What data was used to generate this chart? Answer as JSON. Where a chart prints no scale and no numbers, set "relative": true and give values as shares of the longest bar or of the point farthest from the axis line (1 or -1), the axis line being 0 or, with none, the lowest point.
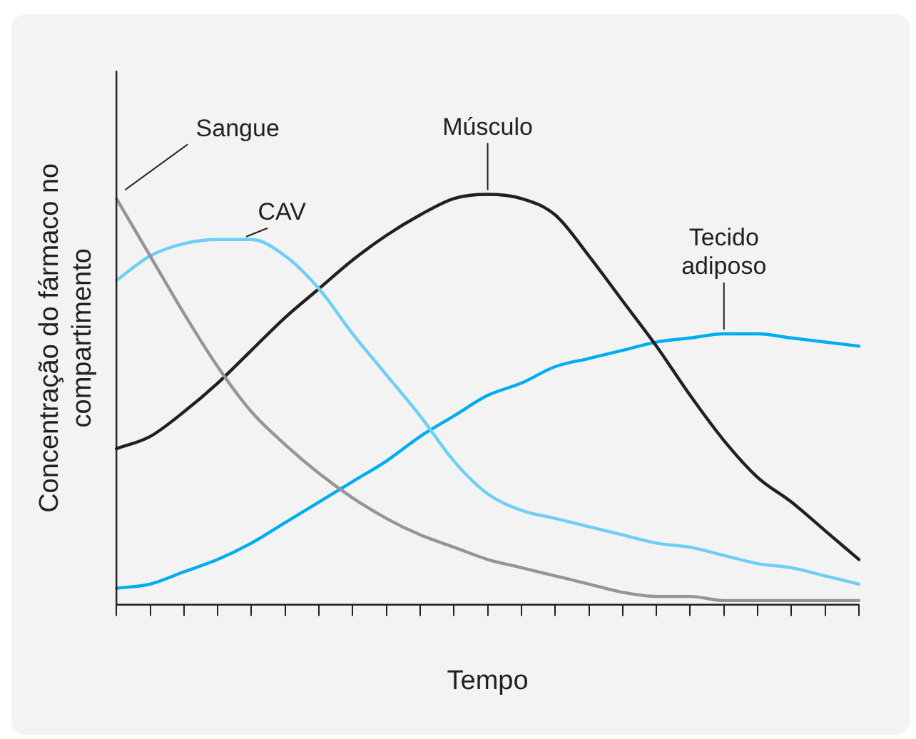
{
  "chart_data": {
    "type": "line",
    "xlabel": "Tempo",
    "ylabel": "Concentração do fármaco no compartimento",
    "relative": true,
    "grid": false,
    "legend": false,
    "marker": "none",
    "line_style": "solid",
    "categories": [
      null,
      null,
      null,
      null,
      null,
      null,
      null,
      null,
      null,
      null,
      null,
      null,
      null,
      null,
      null,
      null,
      null,
      null,
      null,
      null,
      null,
      null,
      null
    ],
    "series": [
      {
        "name": "Sangue",
        "color": "#939598",
        "values": [
          0.99,
          0.85,
          0.71,
          0.58,
          0.47,
          0.39,
          0.32,
          0.26,
          0.21,
          0.17,
          0.14,
          0.11,
          0.09,
          0.07,
          0.05,
          0.03,
          0.02,
          0.02,
          0.01,
          0.01,
          0.01,
          0.01,
          0.01
        ]
      },
      {
        "name": "CAV",
        "color": "#6dcff6",
        "values": [
          0.79,
          0.85,
          0.88,
          0.89,
          0.89,
          0.85,
          0.77,
          0.66,
          0.56,
          0.46,
          0.35,
          0.27,
          0.23,
          0.21,
          0.19,
          0.17,
          0.15,
          0.14,
          0.12,
          0.1,
          0.09,
          0.07,
          0.05
        ]
      },
      {
        "name": "Músculo",
        "color": "#231f20",
        "values": [
          0.38,
          0.41,
          0.47,
          0.54,
          0.62,
          0.7,
          0.77,
          0.84,
          0.9,
          0.95,
          0.99,
          1,
          0.99,
          0.95,
          0.85,
          0.74,
          0.63,
          0.51,
          0.4,
          0.31,
          0.25,
          0.18,
          0.11
        ]
      },
      {
        "name": "Tecido adiposo",
        "color": "#00aeef",
        "values": [
          0.04,
          0.05,
          0.08,
          0.11,
          0.15,
          0.2,
          0.25,
          0.3,
          0.35,
          0.41,
          0.46,
          0.51,
          0.54,
          0.58,
          0.6,
          0.62,
          0.64,
          0.65,
          0.66,
          0.66,
          0.65,
          0.64,
          0.63
        ]
      }
    ]
  }
}
